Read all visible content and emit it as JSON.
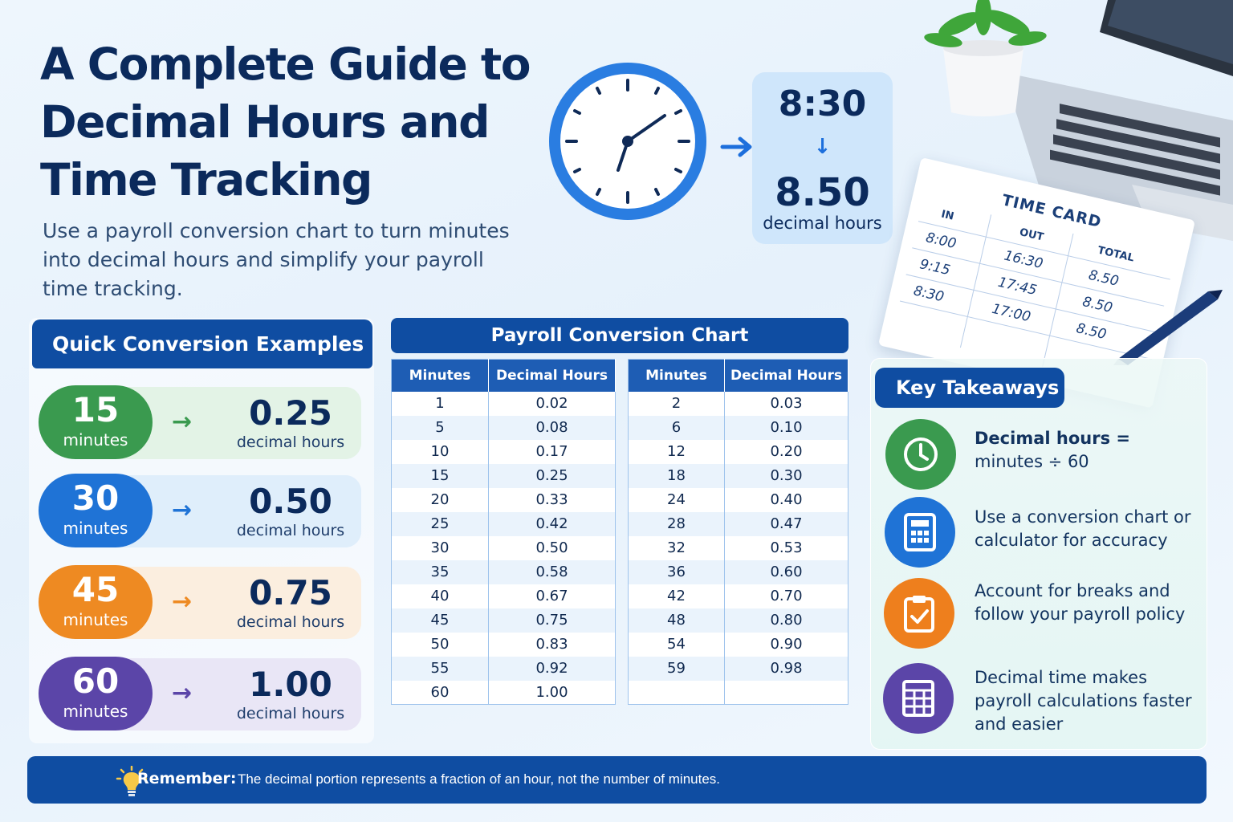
{
  "header": {
    "title": "A Complete Guide to\nDecimal Hours and\nTime Tracking",
    "subtitle": "Use a payroll conversion chart to turn minutes into decimal hours and simplify your payroll time tracking."
  },
  "conversion_example": {
    "clock_time": "8:30",
    "down_arrow": "↓",
    "decimal": "8.50",
    "caption": "decimal hours"
  },
  "time_card": {
    "title": "TIME CARD",
    "headers": [
      "IN",
      "OUT",
      "TOTAL"
    ],
    "rows": [
      {
        "in": "8:00",
        "out": "16:30",
        "total": "8.50"
      },
      {
        "in": "9:15",
        "out": "17:45",
        "total": "8.50"
      },
      {
        "in": "8:30",
        "out": "17:00",
        "total": "8.50"
      }
    ]
  },
  "quick": {
    "title": "Quick Conversion Examples",
    "arrow": "→",
    "items": [
      {
        "minutes": "15",
        "minutes_label": "minutes",
        "decimal": "0.25",
        "decimal_label": "decimal hours",
        "color": "#3a9a4f",
        "tint": "#e3f3e6"
      },
      {
        "minutes": "30",
        "minutes_label": "minutes",
        "decimal": "0.50",
        "decimal_label": "decimal hours",
        "color": "#1f73d6",
        "tint": "#dfeefb"
      },
      {
        "minutes": "45",
        "minutes_label": "minutes",
        "decimal": "0.75",
        "decimal_label": "decimal hours",
        "color": "#ee8a22",
        "tint": "#fbeedf"
      },
      {
        "minutes": "60",
        "minutes_label": "minutes",
        "decimal": "1.00",
        "decimal_label": "decimal hours",
        "color": "#5b45a8",
        "tint": "#e9e6f6"
      }
    ]
  },
  "chart": {
    "title": "Payroll Conversion Chart",
    "col_minutes": "Minutes",
    "col_decimal": "Decimal Hours",
    "left": [
      [
        "1",
        "0.02"
      ],
      [
        "5",
        "0.08"
      ],
      [
        "10",
        "0.17"
      ],
      [
        "15",
        "0.25"
      ],
      [
        "20",
        "0.33"
      ],
      [
        "25",
        "0.42"
      ],
      [
        "30",
        "0.50"
      ],
      [
        "35",
        "0.58"
      ],
      [
        "40",
        "0.67"
      ],
      [
        "45",
        "0.75"
      ],
      [
        "50",
        "0.83"
      ],
      [
        "55",
        "0.92"
      ],
      [
        "60",
        "1.00"
      ]
    ],
    "right": [
      [
        "2",
        "0.03"
      ],
      [
        "6",
        "0.10"
      ],
      [
        "12",
        "0.20"
      ],
      [
        "18",
        "0.30"
      ],
      [
        "24",
        "0.40"
      ],
      [
        "28",
        "0.47"
      ],
      [
        "32",
        "0.53"
      ],
      [
        "36",
        "0.60"
      ],
      [
        "42",
        "0.70"
      ],
      [
        "48",
        "0.80"
      ],
      [
        "54",
        "0.90"
      ],
      [
        "59",
        "0.98"
      ],
      [
        "",
        ""
      ]
    ]
  },
  "takeaways": {
    "title": "Key Takeaways",
    "items": [
      {
        "bold": "Decimal hours =",
        "text": "minutes ÷ 60",
        "icon": "clock-icon",
        "color": "#3a9a4f"
      },
      {
        "bold": "",
        "text": "Use a conversion chart or calculator for accuracy",
        "icon": "calculator-icon",
        "color": "#1f73d6"
      },
      {
        "bold": "",
        "text": "Account for breaks and follow your payroll policy",
        "icon": "clipboard-check-icon",
        "color": "#ee7f1d"
      },
      {
        "bold": "",
        "text": "Decimal time makes payroll calculations faster and easier",
        "icon": "spreadsheet-icon",
        "color": "#5b45a8"
      }
    ]
  },
  "footer": {
    "label": "Remember:",
    "text": "The decimal portion represents a fraction of an hour, not the number of minutes."
  }
}
